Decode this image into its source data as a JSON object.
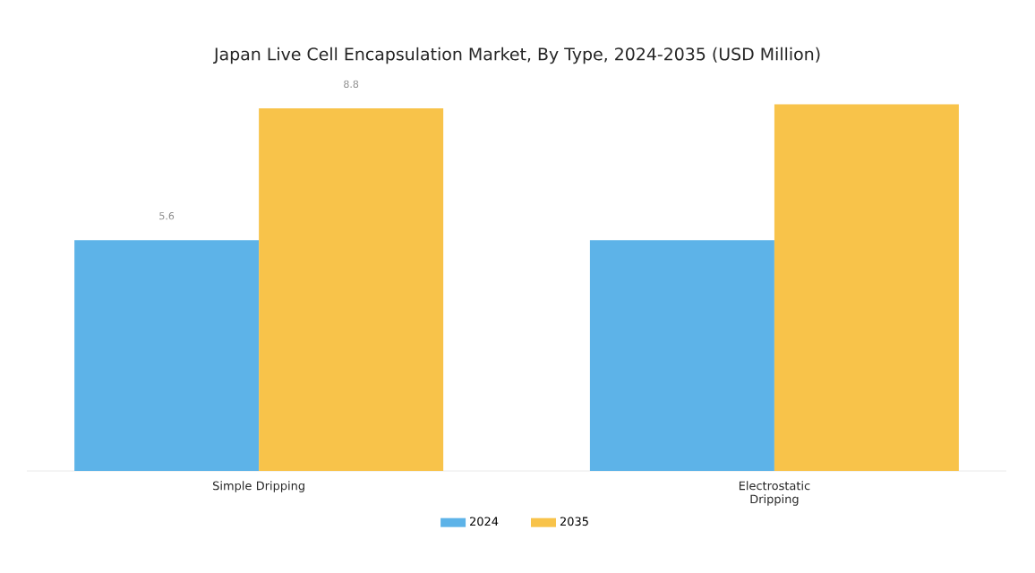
{
  "chart_data": {
    "type": "bar",
    "title": "Japan Live Cell Encapsulation Market, By Type, 2024-2035 (USD Million)",
    "categories": [
      "Simple Dripping",
      "Electrostatic Dripping"
    ],
    "series": [
      {
        "name": "2024",
        "color": "#5db3e8",
        "values": [
          5.6,
          5.6
        ],
        "value_labels": [
          "5.6",
          null
        ]
      },
      {
        "name": "2035",
        "color": "#f8c34a",
        "values": [
          8.8,
          8.9
        ],
        "value_labels": [
          "8.8",
          null
        ]
      }
    ],
    "legend": "bottom"
  }
}
